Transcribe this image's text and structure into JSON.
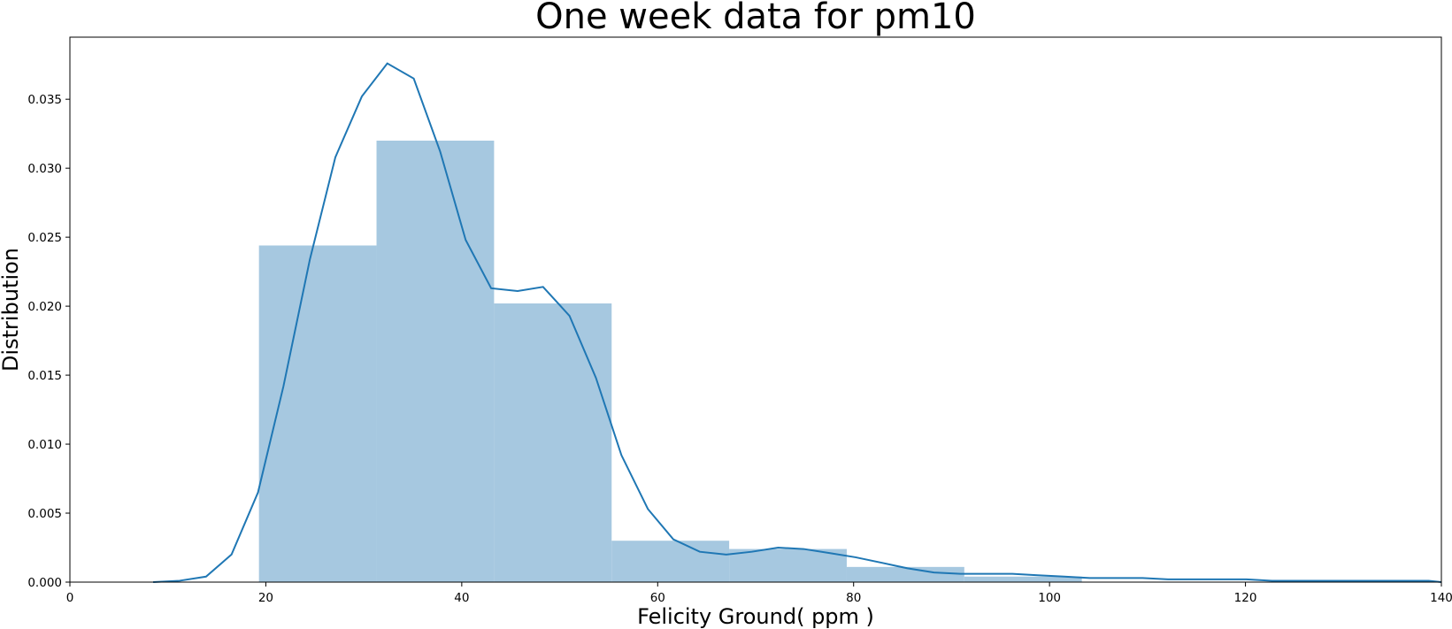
{
  "chart_data": {
    "type": "bar",
    "title": "One week data for pm10",
    "xlabel": "Felicity Ground( ppm )",
    "ylabel": "Distribution",
    "xlim": [
      0,
      140
    ],
    "ylim": [
      0,
      0.0395
    ],
    "x_ticks": [
      "0",
      "20",
      "40",
      "60",
      "80",
      "100",
      "120",
      "140"
    ],
    "y_ticks": [
      "0.000",
      "0.005",
      "0.010",
      "0.015",
      "0.020",
      "0.025",
      "0.030",
      "0.035"
    ],
    "grid": false,
    "legend": "none",
    "colors": {
      "bars": "#a6c8e0",
      "kde_line": "#1f77b4"
    },
    "histogram": {
      "bin_edges": [
        19.3,
        31.3,
        43.3,
        55.3,
        67.3,
        79.3,
        91.3,
        103.3
      ],
      "values": [
        0.0244,
        0.032,
        0.0202,
        0.003,
        0.0024,
        0.0011,
        0.0004
      ]
    },
    "kde": {
      "x": [
        8.5,
        11.2,
        13.9,
        16.5,
        19.2,
        21.8,
        24.5,
        27.1,
        29.8,
        32.4,
        35.1,
        37.8,
        40.4,
        43.0,
        45.7,
        48.3,
        51.0,
        53.7,
        56.3,
        59.0,
        61.6,
        64.3,
        67.0,
        69.6,
        72.3,
        74.9,
        77.6,
        80.2,
        82.9,
        85.5,
        88.2,
        90.9,
        93.5,
        96.2,
        98.8,
        101.5,
        104.1,
        106.8,
        109.5,
        112.1,
        114.8,
        117.4,
        120.1,
        122.7,
        125.4,
        128.0,
        130.7,
        133.4,
        136.0,
        138.7,
        140.0
      ],
      "y": [
        0.0,
        0.0001,
        0.0004,
        0.002,
        0.0065,
        0.0142,
        0.0234,
        0.0308,
        0.0352,
        0.0376,
        0.0365,
        0.0312,
        0.0248,
        0.0213,
        0.0211,
        0.0214,
        0.0193,
        0.0148,
        0.0092,
        0.0053,
        0.0031,
        0.0022,
        0.002,
        0.0022,
        0.0025,
        0.0024,
        0.0021,
        0.0018,
        0.0014,
        0.001,
        0.0007,
        0.0006,
        0.0006,
        0.0006,
        0.0005,
        0.0004,
        0.0003,
        0.0003,
        0.0003,
        0.0002,
        0.0002,
        0.0002,
        0.0002,
        0.0001,
        0.0001,
        0.0001,
        0.0001,
        0.0001,
        0.0001,
        0.0001,
        0.0
      ]
    }
  }
}
